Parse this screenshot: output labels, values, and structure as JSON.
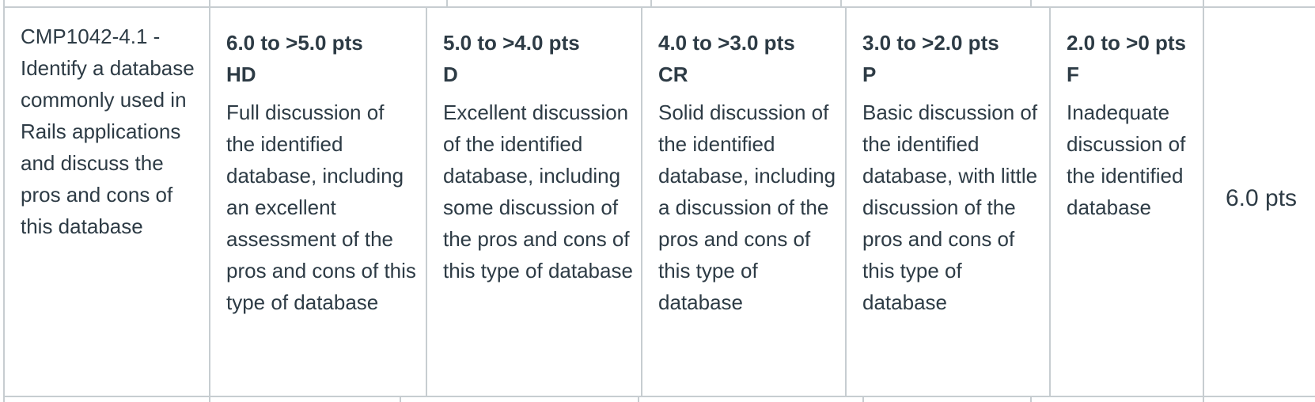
{
  "criterion": {
    "description": "CMP1042-4.1 - Identify a database commonly used in Rails applications and discuss the pros and cons of this database"
  },
  "ratings": [
    {
      "points": "6.0 to >5.0 pts",
      "grade": "HD",
      "description": "Full discussion of the identified database, including an excellent assessment of the pros and cons of this type of database"
    },
    {
      "points": "5.0 to >4.0 pts",
      "grade": "D",
      "description": "Excellent discussion of the identified database, including some discussion of the pros and cons of this type of database"
    },
    {
      "points": "4.0 to >3.0 pts",
      "grade": "CR",
      "description": "Solid discussion of the identified database, including a discussion of the pros and cons of this type of database"
    },
    {
      "points": "3.0 to >2.0 pts",
      "grade": "P",
      "description": "Basic discussion of the identified database, with little discussion of the pros and cons of this type of database"
    },
    {
      "points": "2.0 to >0 pts",
      "grade": "F",
      "description": "Inadequate discussion of the identified database"
    }
  ],
  "total": {
    "points": "6.0 pts"
  }
}
